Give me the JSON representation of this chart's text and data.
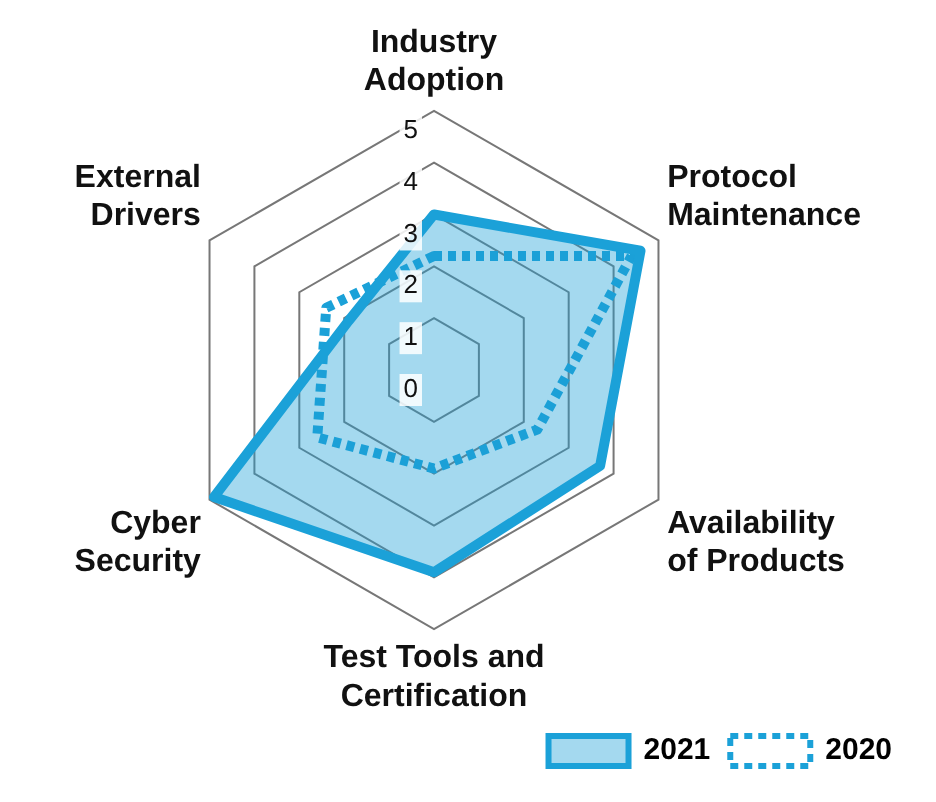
{
  "chart_data": {
    "type": "radar",
    "categories": [
      "Industry Adoption",
      "Protocol Maintenance",
      "Availability of Products",
      "Test Tools and Certification",
      "Cyber Security",
      "External Drivers"
    ],
    "series": [
      {
        "name": "2021",
        "color": "#1ba1d8",
        "line_style": "solid",
        "values": [
          3.0,
          4.6,
          3.7,
          3.9,
          4.9,
          1.9
        ]
      },
      {
        "name": "2020",
        "color": "#1ba1d8",
        "line_style": "dotted",
        "values": [
          2.2,
          4.4,
          2.3,
          1.9,
          2.6,
          2.4
        ]
      }
    ],
    "ylim": [
      0,
      5
    ],
    "yticks": [
      0,
      1,
      2,
      3,
      4,
      5
    ],
    "grid": true,
    "legend": "bottom right",
    "marker": "none"
  }
}
